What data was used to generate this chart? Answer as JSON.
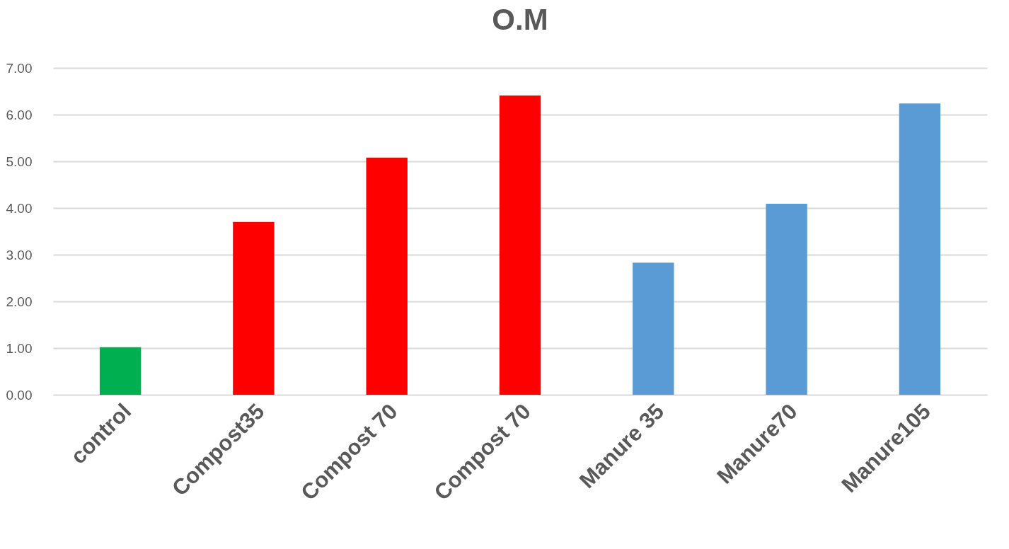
{
  "chart_data": {
    "type": "bar",
    "title": "O.M",
    "categories": [
      "control",
      "Compost35",
      "Compost 70",
      "Compost 70",
      "Manure 35",
      "Manure70",
      "Manure105"
    ],
    "values": [
      1.02,
      3.7,
      5.08,
      6.41,
      2.83,
      4.09,
      6.24
    ],
    "colors": [
      "#00b050",
      "#ff0000",
      "#ff0000",
      "#ff0000",
      "#5b9bd5",
      "#5b9bd5",
      "#5b9bd5"
    ],
    "ylim": [
      0,
      7
    ],
    "yticks": [
      {
        "value": 0,
        "label": "0.00"
      },
      {
        "value": 1,
        "label": "1.00"
      },
      {
        "value": 2,
        "label": "2.00"
      },
      {
        "value": 3,
        "label": "3.00"
      },
      {
        "value": 4,
        "label": "4.00"
      },
      {
        "value": 5,
        "label": "5.00"
      },
      {
        "value": 6,
        "label": "6.00"
      },
      {
        "value": 7,
        "label": "7.00"
      }
    ],
    "grid": "y"
  }
}
